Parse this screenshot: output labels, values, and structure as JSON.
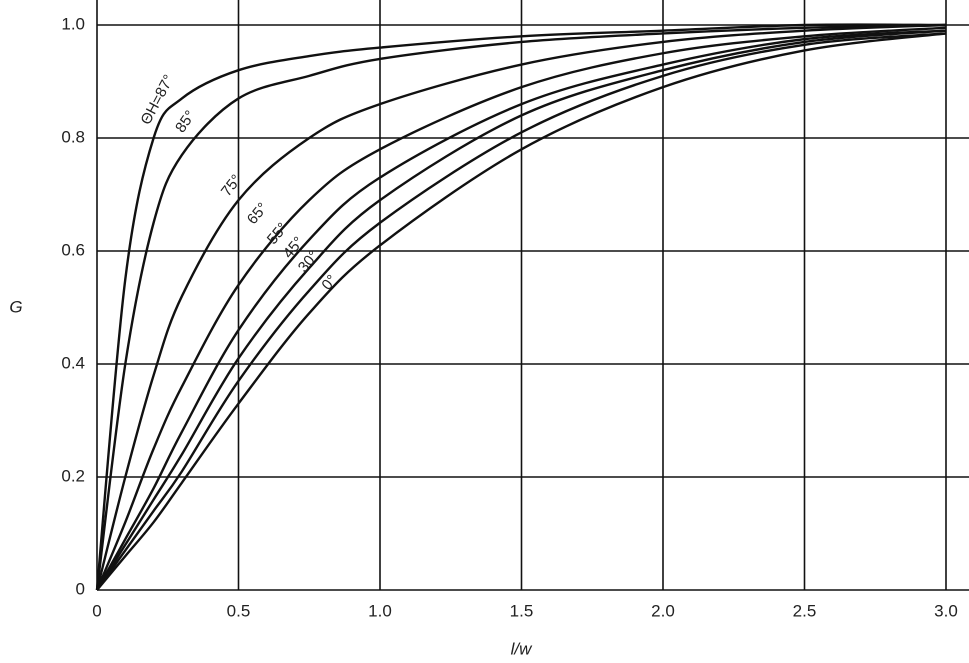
{
  "chart_data": {
    "type": "line",
    "x_label": "l/w",
    "y_label": "G",
    "x": [
      0,
      0.1,
      0.2,
      0.3,
      0.5,
      0.75,
      1.0,
      1.5,
      2.0,
      2.5,
      3.0
    ],
    "series": [
      {
        "name": "ΘH=87°",
        "color": "#111111",
        "values": [
          0,
          0.55,
          0.8,
          0.87,
          0.92,
          0.945,
          0.96,
          0.98,
          0.99,
          1.0,
          1.0
        ]
      },
      {
        "name": "85°",
        "color": "#111111",
        "values": [
          0,
          0.4,
          0.65,
          0.77,
          0.87,
          0.91,
          0.94,
          0.97,
          0.985,
          0.995,
          1.0
        ]
      },
      {
        "name": "75°",
        "color": "#111111",
        "values": [
          0,
          0.2,
          0.38,
          0.52,
          0.69,
          0.8,
          0.86,
          0.93,
          0.97,
          0.99,
          1.0
        ]
      },
      {
        "name": "65°",
        "color": "#111111",
        "values": [
          0,
          0.12,
          0.25,
          0.36,
          0.54,
          0.69,
          0.78,
          0.89,
          0.95,
          0.98,
          0.995
        ]
      },
      {
        "name": "55°",
        "color": "#111111",
        "values": [
          0,
          0.09,
          0.18,
          0.28,
          0.46,
          0.62,
          0.73,
          0.86,
          0.93,
          0.975,
          0.99
        ]
      },
      {
        "name": "45°",
        "color": "#111111",
        "values": [
          0,
          0.08,
          0.16,
          0.24,
          0.41,
          0.57,
          0.69,
          0.84,
          0.92,
          0.97,
          0.99
        ]
      },
      {
        "name": "30°",
        "color": "#111111",
        "values": [
          0,
          0.07,
          0.14,
          0.21,
          0.37,
          0.53,
          0.65,
          0.81,
          0.91,
          0.965,
          0.985
        ]
      },
      {
        "name": "0°",
        "color": "#111111",
        "values": [
          0,
          0.06,
          0.12,
          0.19,
          0.33,
          0.49,
          0.61,
          0.78,
          0.89,
          0.955,
          0.985
        ]
      }
    ],
    "xlim": [
      0,
      3
    ],
    "ylim": [
      0,
      1
    ],
    "xticks": [
      0,
      0.5,
      {
        "value": 1,
        "label": "1.0"
      },
      1.5,
      {
        "value": 2,
        "label": "2.0"
      },
      2.5,
      {
        "value": 3,
        "label": "3.0"
      }
    ],
    "yticks": [
      0,
      0.2,
      0.4,
      0.6,
      0.8,
      {
        "value": 1,
        "label": "1.0"
      }
    ],
    "grid": true
  }
}
